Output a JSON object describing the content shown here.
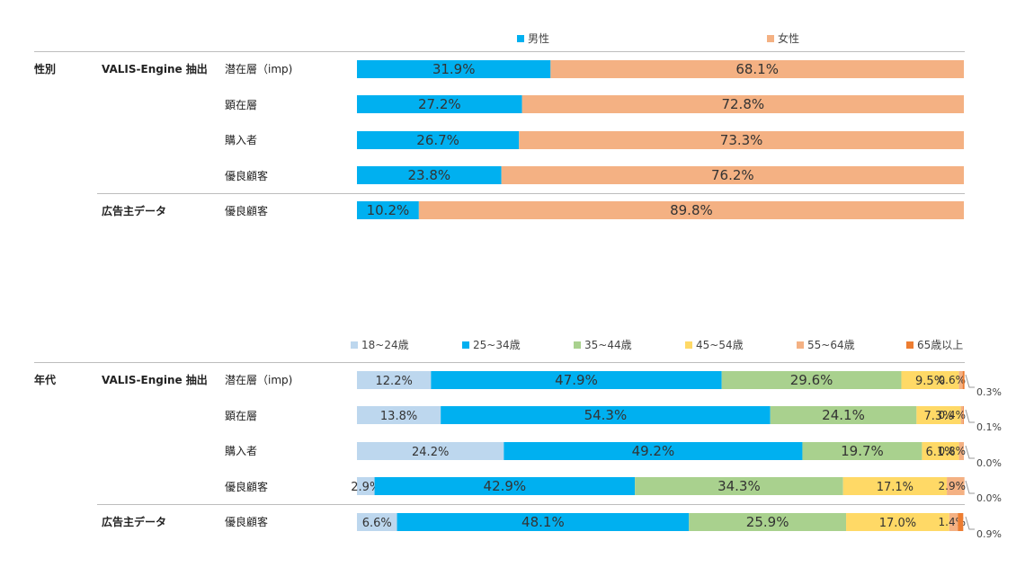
{
  "chart_data": [
    {
      "type": "bar",
      "orientation": "horizontal",
      "stacked": true,
      "percent": true,
      "section_label": "性別",
      "categories": [
        {
          "group": "VALIS-Engine 抽出",
          "label": "潜在層（imp)"
        },
        {
          "group": "",
          "label": "顕在層"
        },
        {
          "group": "",
          "label": "購入者"
        },
        {
          "group": "",
          "label": "優良顧客"
        },
        {
          "group": "広告主データ",
          "label": "優良顧客"
        }
      ],
      "series": [
        {
          "name": "男性",
          "color": "#00b0f0",
          "values": [
            31.9,
            27.2,
            26.7,
            23.8,
            10.2
          ]
        },
        {
          "name": "女性",
          "color": "#f4b183",
          "values": [
            68.1,
            72.8,
            73.3,
            76.2,
            89.8
          ]
        }
      ],
      "legend_position": "top"
    },
    {
      "type": "bar",
      "orientation": "horizontal",
      "stacked": true,
      "percent": true,
      "section_label": "年代",
      "categories": [
        {
          "group": "VALIS-Engine 抽出",
          "label": "潜在層（imp)"
        },
        {
          "group": "",
          "label": "顕在層"
        },
        {
          "group": "",
          "label": "購入者"
        },
        {
          "group": "",
          "label": "優良顧客"
        },
        {
          "group": "広告主データ",
          "label": "優良顧客"
        }
      ],
      "series": [
        {
          "name": "18~24歳",
          "color": "#bdd7ee",
          "values": [
            12.2,
            13.8,
            24.2,
            2.9,
            6.6
          ]
        },
        {
          "name": "25~34歳",
          "color": "#00b0f0",
          "values": [
            47.9,
            54.3,
            49.2,
            42.9,
            48.1
          ]
        },
        {
          "name": "35~44歳",
          "color": "#a9d18e",
          "values": [
            29.6,
            24.1,
            19.7,
            34.3,
            25.9
          ]
        },
        {
          "name": "45~54歳",
          "color": "#ffd966",
          "values": [
            9.5,
            7.3,
            6.1,
            17.1,
            17.0
          ]
        },
        {
          "name": "55~64歳",
          "color": "#f4b183",
          "values": [
            0.6,
            0.4,
            0.8,
            2.9,
            1.4
          ]
        },
        {
          "name": "65歳以上",
          "color": "#ed7d31",
          "values": [
            0.3,
            0.1,
            0.0,
            0.0,
            0.9
          ]
        }
      ],
      "legend_position": "top"
    }
  ]
}
